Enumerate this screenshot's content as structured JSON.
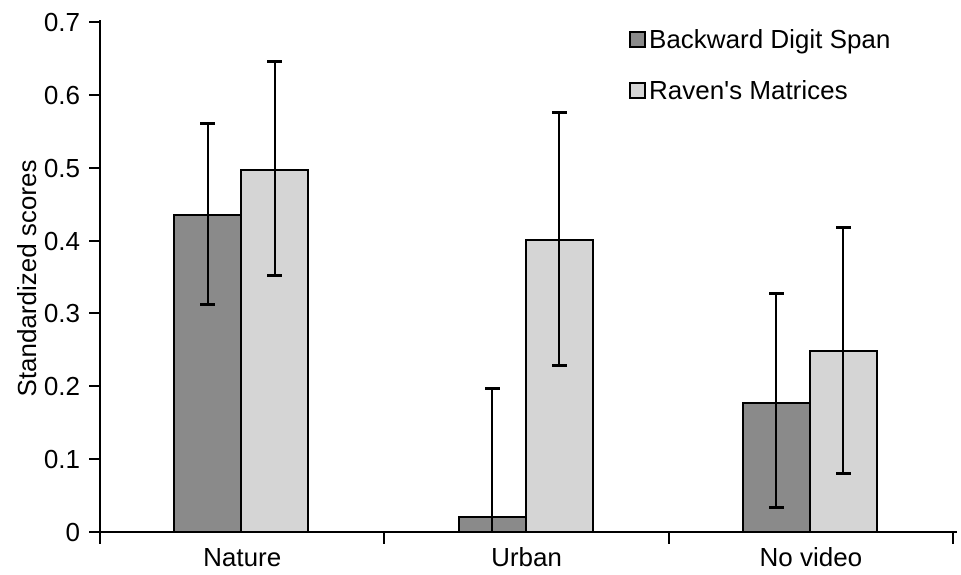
{
  "figure": {
    "background": "#ffffff",
    "axis_color": "#000000",
    "text_color": "#000000"
  },
  "chart_data": {
    "type": "bar",
    "title": "",
    "xlabel": "",
    "ylabel": "Standardized scores",
    "categories": [
      "Nature",
      "Urban",
      "No video"
    ],
    "series": [
      {
        "name": "Backward Digit Span",
        "color": "#8a8a8a",
        "values": [
          0.437,
          0.022,
          0.179
        ],
        "error_high": [
          0.562,
          0.198,
          0.328
        ],
        "error_low": [
          0.312,
          0.0,
          0.033
        ]
      },
      {
        "name": "Raven's Matrices",
        "color": "#d5d5d5",
        "values": [
          0.498,
          0.402,
          0.25
        ],
        "error_high": [
          0.647,
          0.577,
          0.418
        ],
        "error_low": [
          0.352,
          0.228,
          0.08
        ]
      }
    ],
    "ylim": [
      0,
      0.7
    ],
    "y_ticks": [
      0,
      0.1,
      0.2,
      0.3,
      0.4,
      0.5,
      0.6,
      0.7
    ],
    "y_tick_labels": [
      "0",
      "0.1",
      "0.2",
      "0.3",
      "0.4",
      "0.5",
      "0.6",
      "0.7"
    ],
    "grid": false,
    "legend_position": "top-right",
    "bar_border_color": "#000000",
    "error_bar_color": "#000000"
  }
}
